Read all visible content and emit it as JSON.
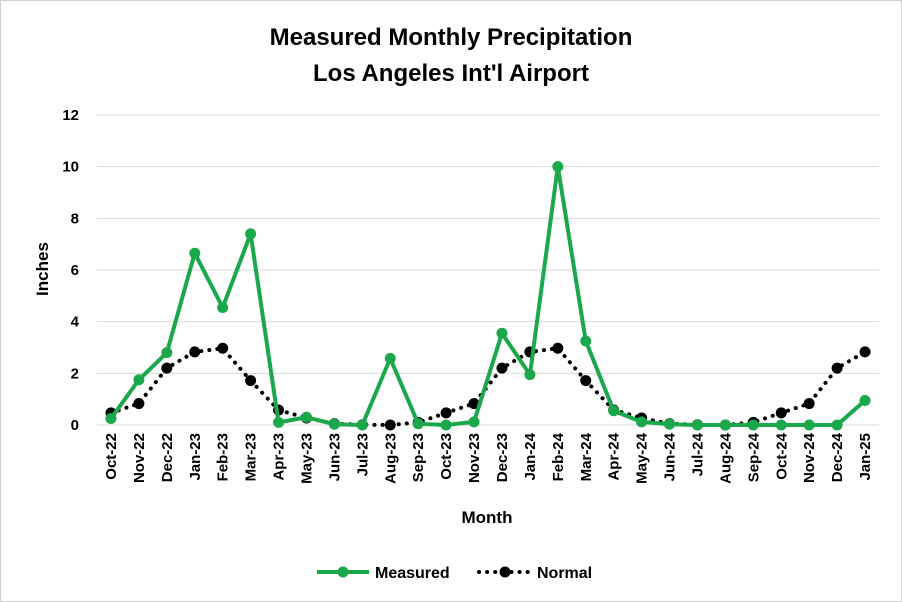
{
  "chart_data": {
    "type": "line",
    "title_line1": "Measured Monthly Precipitation",
    "title_line2": "Los Angeles Int'l Airport",
    "xlabel": "Month",
    "ylabel": "Inches",
    "ylim": [
      0,
      12
    ],
    "yticks": [
      0,
      2,
      4,
      6,
      8,
      10,
      12
    ],
    "grid": "horizontal",
    "legend": "bottom",
    "categories": [
      "Oct-22",
      "Nov-22",
      "Dec-22",
      "Jan-23",
      "Feb-23",
      "Mar-23",
      "Apr-23",
      "May-23",
      "Jun-23",
      "Jul-23",
      "Aug-23",
      "Sep-23",
      "Oct-23",
      "Nov-23",
      "Dec-23",
      "Jan-24",
      "Feb-24",
      "Mar-24",
      "Apr-24",
      "May-24",
      "Jun-24",
      "Jul-24",
      "Aug-24",
      "Sep-24",
      "Oct-24",
      "Nov-24",
      "Dec-24",
      "Jan-25"
    ],
    "series": [
      {
        "name": "Measured",
        "color": "#1aa84a",
        "style": "solid",
        "values": [
          0.25,
          1.75,
          2.8,
          6.65,
          4.55,
          7.4,
          0.1,
          0.3,
          0.03,
          0.0,
          2.58,
          0.05,
          0.0,
          0.12,
          3.55,
          1.95,
          10.0,
          3.25,
          0.55,
          0.12,
          0.03,
          0.0,
          0.0,
          0.0,
          0.0,
          0.0,
          0.0,
          0.95
        ]
      },
      {
        "name": "Normal",
        "color": "#000000",
        "style": "dotted",
        "values": [
          0.47,
          0.83,
          2.2,
          2.83,
          2.97,
          1.72,
          0.58,
          0.27,
          0.05,
          0.01,
          0.0,
          0.1,
          0.47,
          0.83,
          2.2,
          2.83,
          2.97,
          1.72,
          0.58,
          0.27,
          0.05,
          0.01,
          0.0,
          0.1,
          0.47,
          0.83,
          2.2,
          2.83
        ]
      }
    ]
  }
}
